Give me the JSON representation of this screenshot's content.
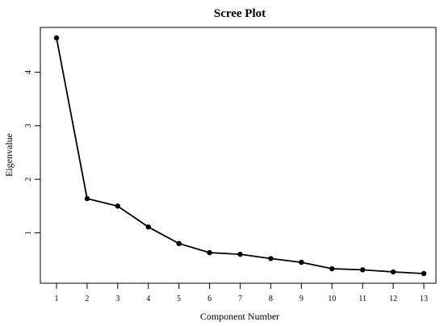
{
  "chart_data": {
    "type": "line",
    "title": "Scree Plot",
    "xlabel": "Component Number",
    "ylabel": "Eigenvalue",
    "x": [
      1,
      2,
      3,
      4,
      5,
      6,
      7,
      8,
      9,
      10,
      11,
      12,
      13
    ],
    "y": [
      4.64,
      1.64,
      1.5,
      1.11,
      0.8,
      0.63,
      0.6,
      0.52,
      0.45,
      0.33,
      0.31,
      0.27,
      0.24
    ],
    "xlim": [
      1,
      13
    ],
    "ylim": [
      0.24,
      4.64
    ],
    "xticks": [
      1,
      2,
      3,
      4,
      5,
      6,
      7,
      8,
      9,
      10,
      11,
      12,
      13
    ],
    "yticks": [
      1,
      2,
      3,
      4
    ],
    "grid": false,
    "legend": "none",
    "line_color": "#000000",
    "marker": "filled-circle"
  }
}
